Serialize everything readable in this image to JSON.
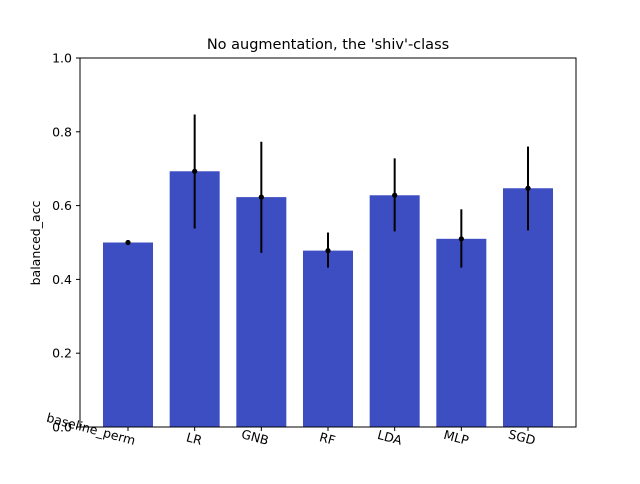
{
  "chart_data": {
    "type": "bar",
    "title": "No augmentation, the 'shiv'-class",
    "xlabel": "",
    "ylabel": "balanced_acc",
    "categories": [
      "baseline_perm",
      "LR",
      "GNB",
      "RF",
      "LDA",
      "MLP",
      "SGD"
    ],
    "values": [
      0.5,
      0.693,
      0.623,
      0.478,
      0.628,
      0.51,
      0.647
    ],
    "error_low": [
      0.5,
      0.538,
      0.472,
      0.432,
      0.53,
      0.432,
      0.533
    ],
    "error_high": [
      0.5,
      0.847,
      0.773,
      0.527,
      0.728,
      0.59,
      0.76
    ],
    "ylim": [
      0.0,
      1.0
    ],
    "yticks": [
      "0.0",
      "0.2",
      "0.4",
      "0.6",
      "0.8",
      "1.0"
    ],
    "bar_color": "#3c4ec2",
    "error_color": "#000000",
    "grid": false,
    "legend": "none",
    "xtick_rotation": "slanted"
  }
}
